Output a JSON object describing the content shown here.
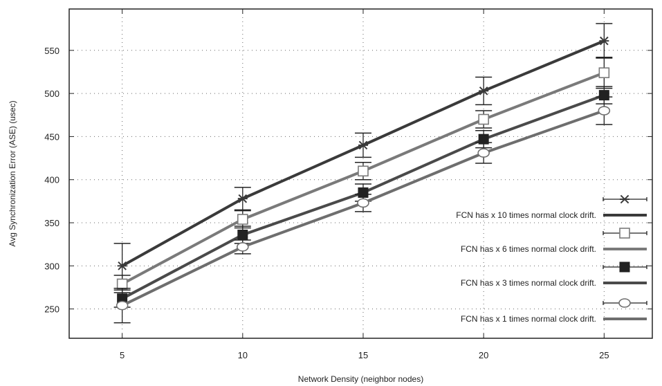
{
  "chart_data": {
    "type": "line",
    "xlabel": "Network Density (neighbor nodes)",
    "ylabel": "Avg Synchronization Error (ASE) (usec)",
    "x": [
      5,
      10,
      15,
      20,
      25
    ],
    "xlim": [
      2.8,
      27.0
    ],
    "ylim": [
      216,
      598
    ],
    "x_ticks": [
      5,
      10,
      15,
      20,
      25
    ],
    "y_ticks": [
      250,
      300,
      350,
      400,
      450,
      500,
      550
    ],
    "grid": true,
    "legend_position": "bottom-right",
    "series": [
      {
        "name": "FCN has x 10 times normal clock drift.",
        "marker": "star",
        "color": "#3a3a3a",
        "values": [
          300,
          378,
          440,
          503,
          561
        ],
        "error": [
          26,
          13,
          14,
          16,
          20
        ]
      },
      {
        "name": "FCN has x 6 times normal clock drift.",
        "marker": "square-open",
        "color": "#7a7a7a",
        "values": [
          279,
          354,
          410,
          470,
          524
        ],
        "error": [
          10,
          10,
          10,
          10,
          18
        ]
      },
      {
        "name": "FCN has x 3 times normal clock drift.",
        "marker": "square-filled",
        "color": "#4a4a4a",
        "values": [
          262,
          336,
          385,
          447,
          498
        ],
        "error": [
          10,
          10,
          10,
          10,
          10
        ]
      },
      {
        "name": "FCN has x 1 times normal clock drift.",
        "marker": "circle-open",
        "color": "#6e6e6e",
        "values": [
          254,
          322,
          373,
          431,
          480
        ],
        "error": [
          20,
          8,
          10,
          12,
          16
        ]
      }
    ]
  }
}
